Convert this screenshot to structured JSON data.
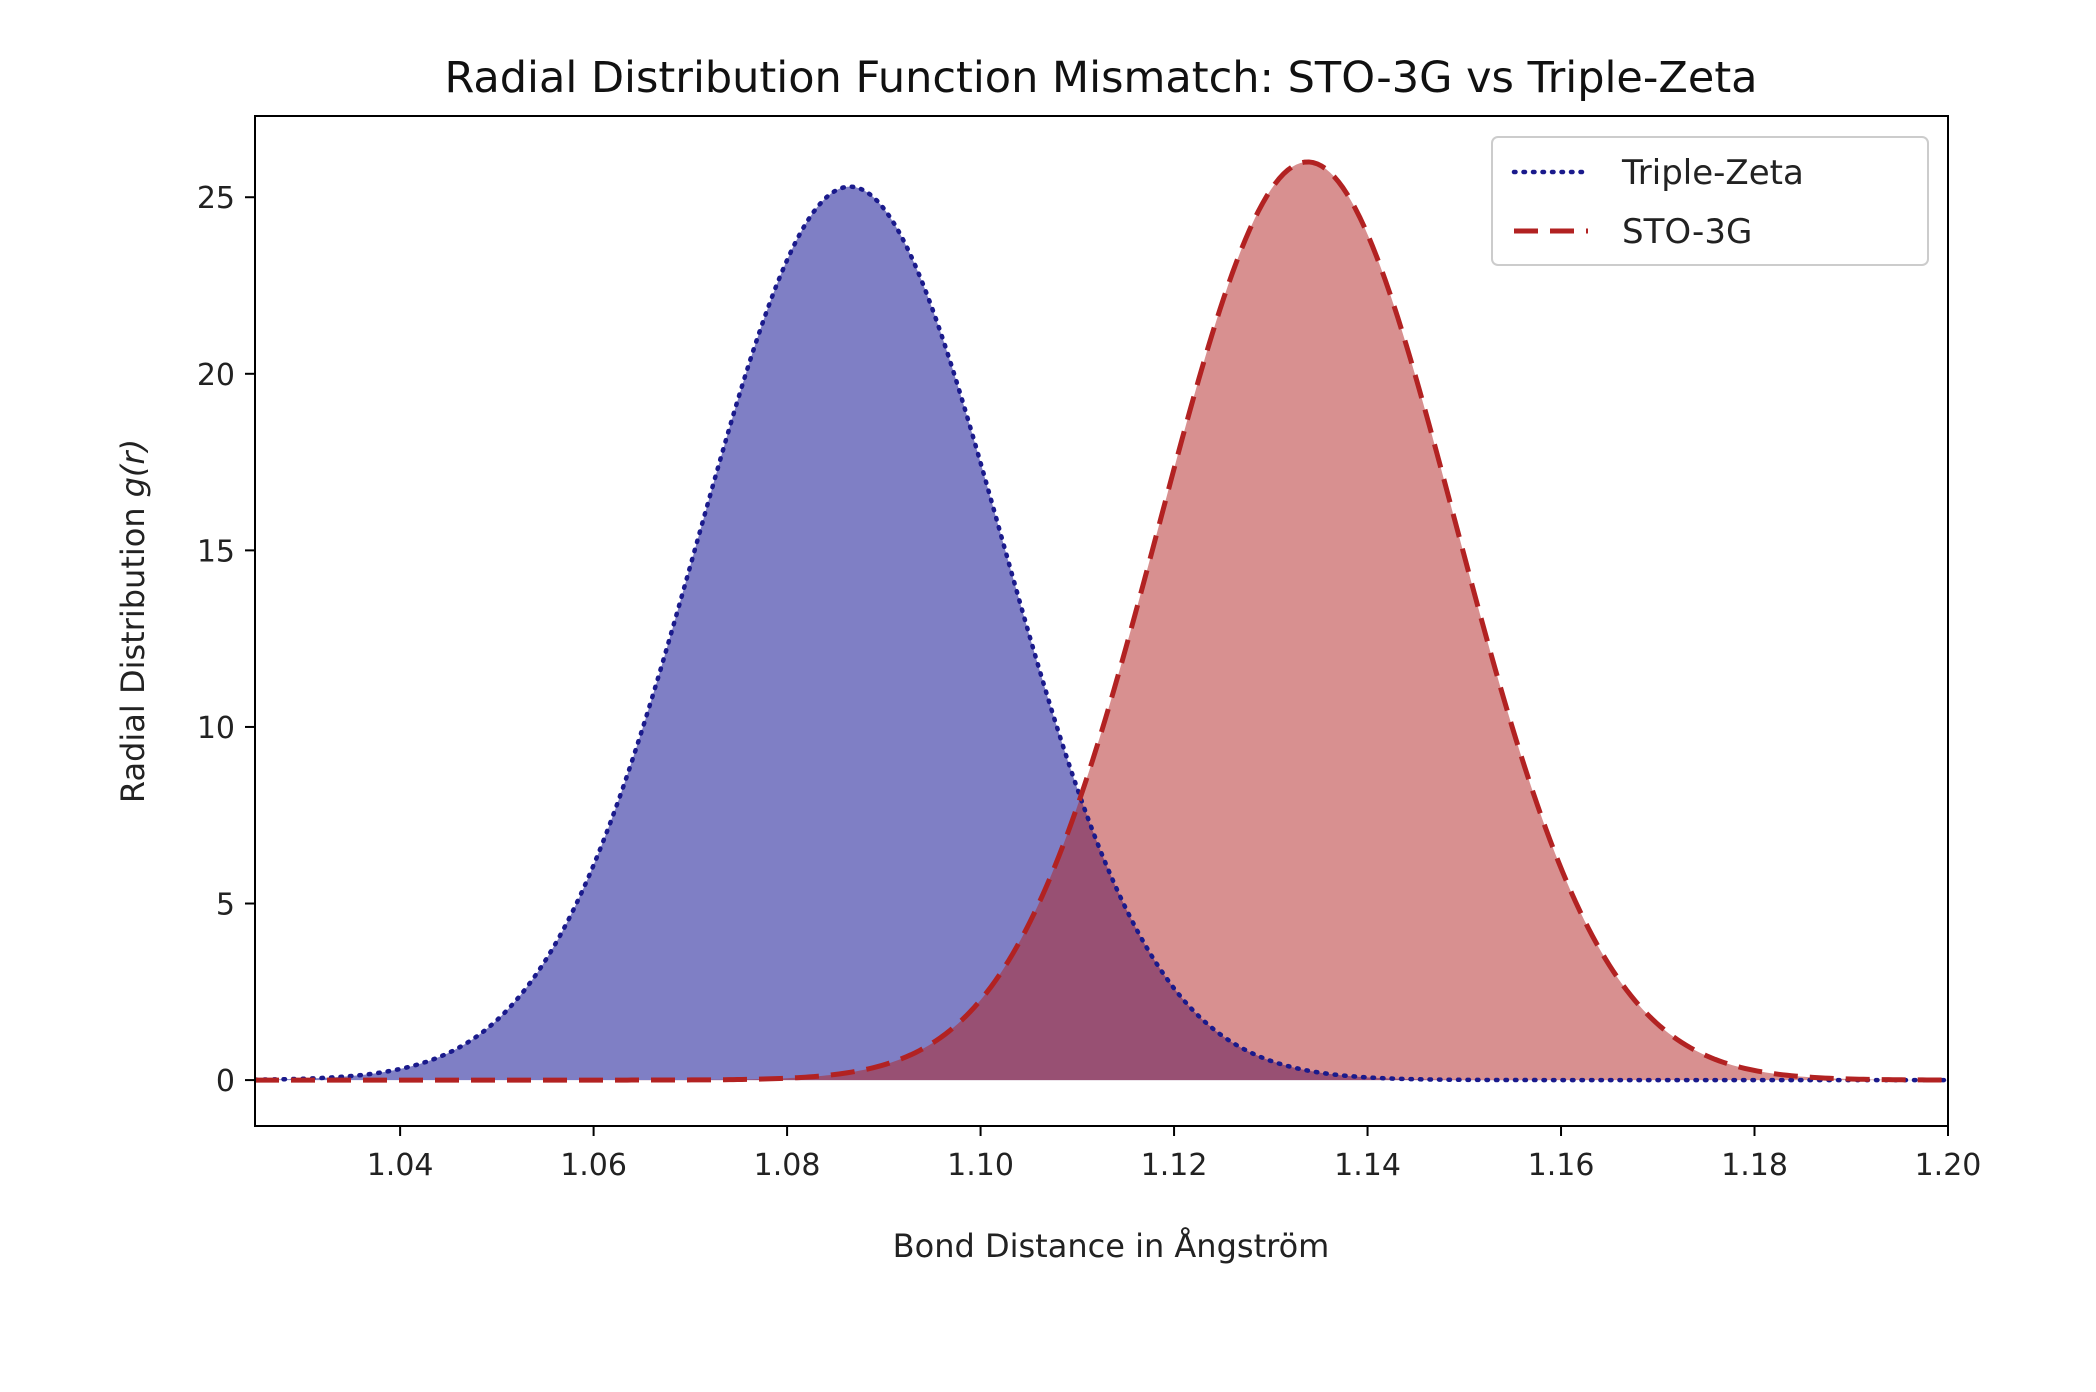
{
  "chart_data": {
    "type": "area",
    "title": "Radial Distribution Function Mismatch: STO-3G vs Triple-Zeta",
    "xlabel": "Bond Distance in Ångström",
    "ylabel": "Radial Distribution",
    "ylabel_math": "g(r)",
    "xlim": [
      1.025,
      1.2
    ],
    "ylim": [
      -1.3,
      27.3
    ],
    "xticks": [
      1.04,
      1.06,
      1.08,
      1.1,
      1.12,
      1.14,
      1.16,
      1.18,
      1.2
    ],
    "xtick_labels": [
      "1.04",
      "1.06",
      "1.08",
      "1.10",
      "1.12",
      "1.14",
      "1.16",
      "1.18",
      "1.20"
    ],
    "yticks": [
      0,
      5,
      10,
      15,
      20,
      25
    ],
    "ytick_labels": [
      "0",
      "5",
      "10",
      "15",
      "20",
      "25"
    ],
    "grid": false,
    "legend_position": "top-right",
    "series": [
      {
        "name": "Triple-Zeta",
        "line_style": "dotted",
        "line_color": "#1a1a8c",
        "fill_color": "#00008b",
        "fill_opacity": 0.5,
        "peak_x": 1.0865,
        "peak_y": 25.3,
        "std_dev": 0.0157
      },
      {
        "name": "STO-3G",
        "line_style": "dashed",
        "line_color": "#b22222",
        "fill_color": "#b22222",
        "fill_opacity": 0.5,
        "peak_x": 1.1338,
        "peak_y": 26.0,
        "std_dev": 0.0153
      }
    ]
  }
}
